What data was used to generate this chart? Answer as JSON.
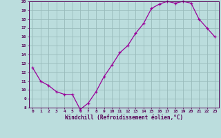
{
  "x": [
    0,
    1,
    2,
    3,
    4,
    5,
    6,
    7,
    8,
    9,
    10,
    11,
    12,
    13,
    14,
    15,
    16,
    17,
    18,
    19,
    20,
    21,
    22,
    23
  ],
  "y": [
    12.5,
    11.0,
    10.5,
    9.8,
    9.5,
    9.5,
    7.8,
    8.5,
    9.8,
    11.5,
    12.8,
    14.2,
    15.0,
    16.4,
    17.5,
    19.2,
    19.7,
    20.0,
    19.8,
    20.0,
    19.8,
    18.0,
    17.0,
    16.0
  ],
  "line_color": "#990099",
  "marker": "+",
  "markersize": 3.5,
  "linewidth": 0.9,
  "bg_color": "#bbdddd",
  "grid_color": "#99bbbb",
  "xlabel": "Windchill (Refroidissement éolien,°C)",
  "xlabel_color": "#550055",
  "tick_color": "#550055",
  "ylim": [
    8,
    20
  ],
  "xlim": [
    -0.5,
    23.5
  ],
  "yticks": [
    8,
    9,
    10,
    11,
    12,
    13,
    14,
    15,
    16,
    17,
    18,
    19,
    20
  ],
  "xticks": [
    0,
    1,
    2,
    3,
    4,
    5,
    6,
    7,
    8,
    9,
    10,
    11,
    12,
    13,
    14,
    15,
    16,
    17,
    18,
    19,
    20,
    21,
    22,
    23
  ],
  "font_size_ticks": 4.5,
  "font_size_xlabel": 5.5,
  "font_family": "monospace"
}
